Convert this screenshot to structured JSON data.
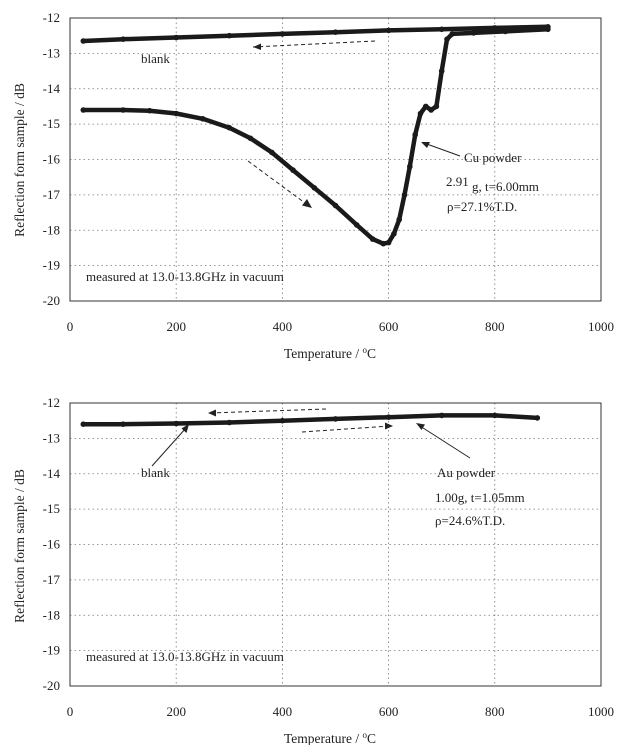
{
  "chart_data": [
    {
      "type": "scatter",
      "xlabel": "Temperature  /   °C",
      "ylabel": "Reflection form sample  /  dB",
      "xlim": [
        0,
        1000
      ],
      "ylim": [
        -20,
        -12
      ],
      "xticks": [
        "0",
        "200",
        "400",
        "600",
        "800",
        "1000"
      ],
      "yticks": [
        "-12",
        "-13",
        "-14",
        "-15",
        "-16",
        "-17",
        "-18",
        "-19",
        "-20"
      ],
      "grid": true,
      "series": [
        {
          "x": [
            25,
            100,
            200,
            300,
            400,
            500,
            600,
            700,
            800,
            900
          ],
          "y": [
            -12.65,
            -12.6,
            -12.55,
            -12.5,
            -12.45,
            -12.4,
            -12.35,
            -12.32,
            -12.28,
            -12.25
          ]
        },
        {
          "x": [
            25,
            100,
            150,
            200,
            250,
            300,
            340,
            380,
            420,
            460,
            500,
            540,
            570,
            590,
            600,
            610,
            620,
            630,
            640,
            650,
            660,
            670,
            680,
            690,
            700,
            710,
            720,
            760,
            820,
            900
          ],
          "y": [
            -14.6,
            -14.6,
            -14.62,
            -14.7,
            -14.85,
            -15.1,
            -15.4,
            -15.8,
            -16.3,
            -16.8,
            -17.3,
            -17.85,
            -18.25,
            -18.38,
            -18.35,
            -18.1,
            -17.7,
            -17.0,
            -16.2,
            -15.3,
            -14.7,
            -14.5,
            -14.6,
            -14.5,
            -13.5,
            -12.6,
            -12.45,
            -12.42,
            -12.38,
            -12.32
          ]
        }
      ],
      "annotations": [
        {
          "text": "blank"
        },
        {
          "text": "Cu powder"
        },
        {
          "text": "2.91"
        },
        {
          "text": " g, t=6.00mm"
        },
        {
          "text": "ρ=27.1%T.D."
        },
        {
          "text": "measured at 13.0-13.8GHz in vacuum"
        }
      ]
    },
    {
      "type": "scatter",
      "xlabel": "Temperature  /   °C",
      "ylabel": "Reflection form sample  /  dB",
      "xlim": [
        0,
        1000
      ],
      "ylim": [
        -20,
        -12
      ],
      "xticks": [
        "0",
        "200",
        "400",
        "600",
        "800",
        "1000"
      ],
      "yticks": [
        "-12",
        "-13",
        "-14",
        "-15",
        "-16",
        "-17",
        "-18",
        "-19",
        "-20"
      ],
      "grid": true,
      "series": [
        {
          "x": [
            25,
            100,
            200,
            300,
            400,
            500,
            600,
            700,
            800,
            880
          ],
          "y": [
            -12.6,
            -12.6,
            -12.58,
            -12.55,
            -12.5,
            -12.45,
            -12.4,
            -12.35,
            -12.35,
            -12.42
          ]
        }
      ],
      "annotations": [
        {
          "text": "blank"
        },
        {
          "text": "Au powder"
        },
        {
          "text": "1.00g, t=1.05mm"
        },
        {
          "text": "ρ=24.6%T.D."
        },
        {
          "text": "measured at 13.0-13.8GHz in vacuum"
        }
      ]
    }
  ]
}
